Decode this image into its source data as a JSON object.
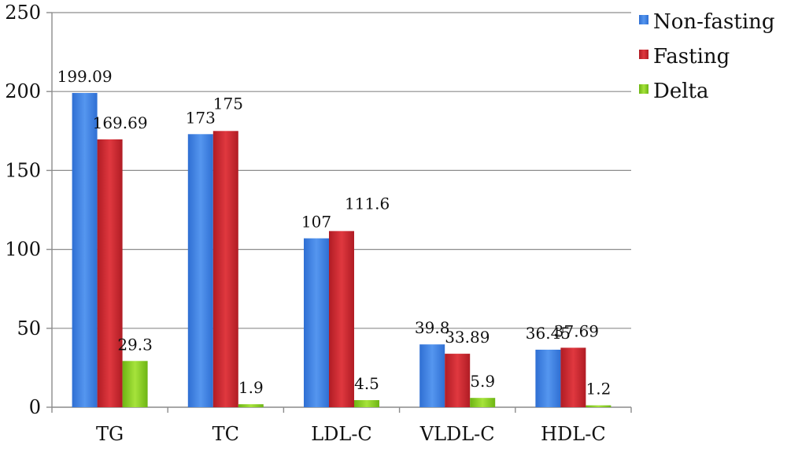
{
  "chart_data": {
    "type": "bar",
    "categories": [
      "TG",
      "TC",
      "LDL-C",
      "VLDL-C",
      "HDL-C"
    ],
    "series": [
      {
        "name": "Non-fasting",
        "color": "#3d7ee0",
        "values": [
          199.09,
          173,
          107,
          39.8,
          36.45
        ],
        "labels": [
          "199.09",
          "173",
          "107",
          "39.8",
          "36.45"
        ]
      },
      {
        "name": "Fasting",
        "color": "#c9252d",
        "values": [
          169.69,
          175,
          111.6,
          33.89,
          37.69
        ],
        "labels": [
          "169.69",
          "175",
          "111.6",
          "33.89",
          "37.69"
        ]
      },
      {
        "name": "Delta",
        "color": "#84cc1f",
        "values": [
          29.3,
          1.9,
          4.5,
          5.9,
          1.2
        ],
        "labels": [
          "29.3",
          "1.9",
          "4.5",
          "5.9",
          "1.2"
        ]
      }
    ],
    "y_ticks": [
      "0",
      "50",
      "100",
      "150",
      "200",
      "250"
    ],
    "ylim": [
      0,
      250
    ],
    "grid": true,
    "legend_position": "top-right"
  }
}
